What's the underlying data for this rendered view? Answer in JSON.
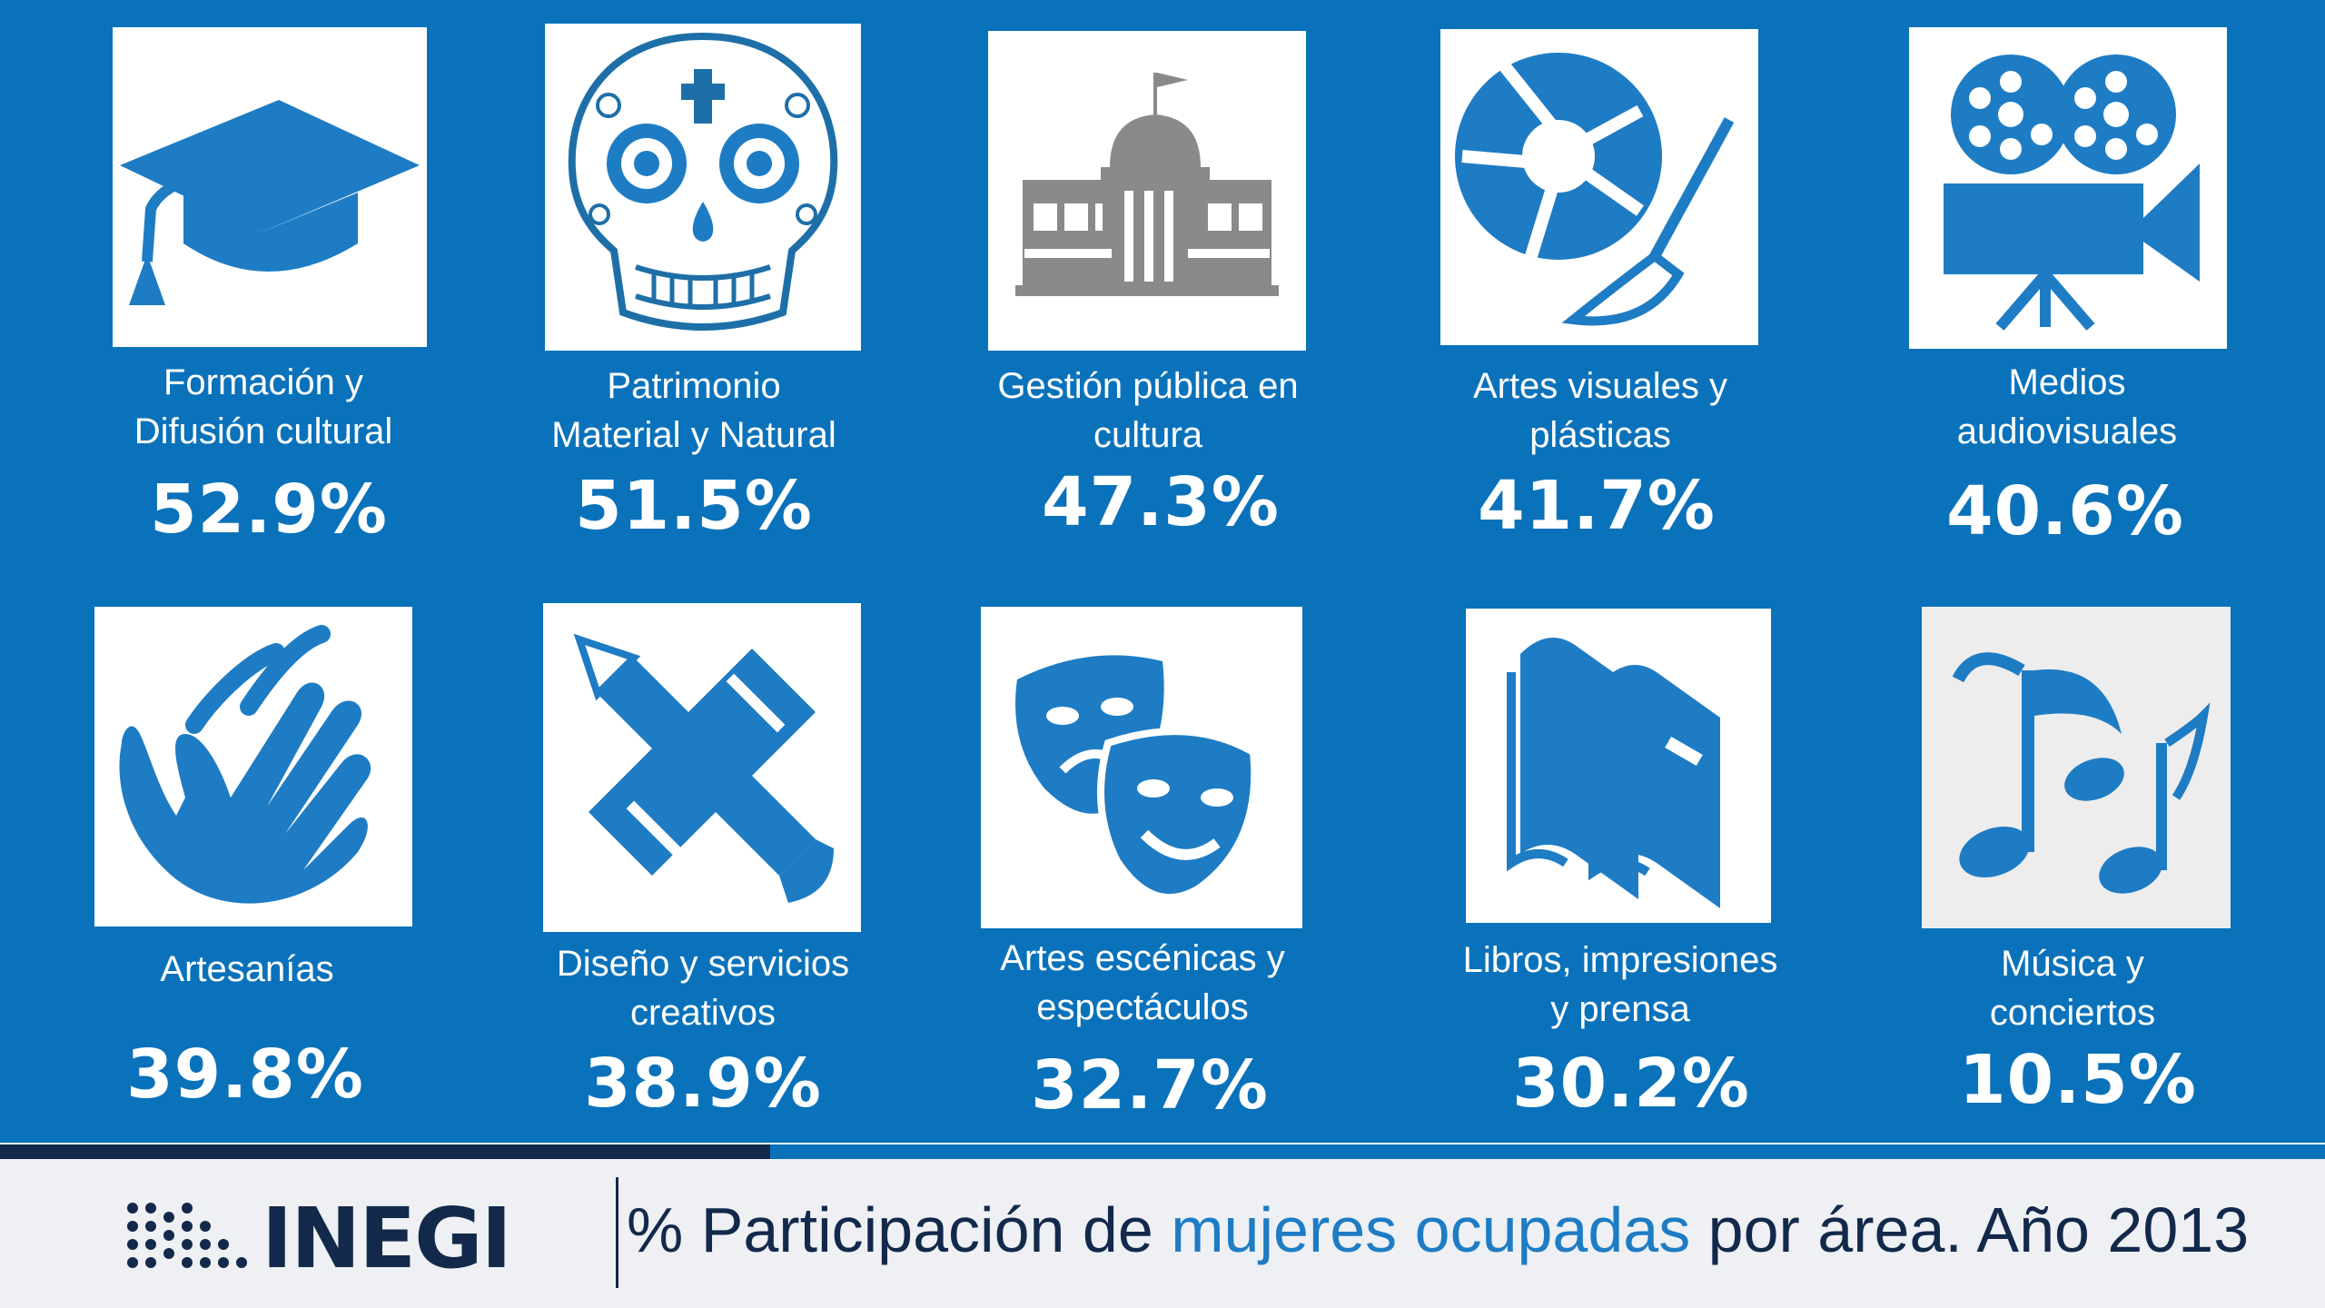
{
  "items": [
    {
      "label_l1": "Formación y",
      "label_l2": "Difusión cultural",
      "value": "52.9%",
      "icon": "graduation-cap-icon"
    },
    {
      "label_l1": "Patrimonio",
      "label_l2": "Material y Natural",
      "value": "51.5%",
      "icon": "sugar-skull-icon"
    },
    {
      "label_l1": "Gestión pública en",
      "label_l2": "cultura",
      "value": "47.3%",
      "icon": "government-building-icon"
    },
    {
      "label_l1": "Artes visuales y",
      "label_l2": "plásticas",
      "value": "41.7%",
      "icon": "aperture-brush-icon"
    },
    {
      "label_l1": "Medios",
      "label_l2": "audiovisuales",
      "value": "40.6%",
      "icon": "film-camera-icon"
    },
    {
      "label_l1": "Artesanías",
      "label_l2": "",
      "value": "39.8%",
      "icon": "hands-icon"
    },
    {
      "label_l1": "Diseño y servicios",
      "label_l2": "creativos",
      "value": "38.9%",
      "icon": "pencil-ruler-icon"
    },
    {
      "label_l1": "Artes escénicas y",
      "label_l2": "espectáculos",
      "value": "32.7%",
      "icon": "theater-masks-icon"
    },
    {
      "label_l1": "Libros, impresiones",
      "label_l2": "y prensa",
      "value": "30.2%",
      "icon": "books-icon"
    },
    {
      "label_l1": "Música y",
      "label_l2": "conciertos",
      "value": "10.5%",
      "icon": "music-notes-icon"
    }
  ],
  "footer": {
    "logo_text": "INEGI",
    "caption_prefix": "% Participación de ",
    "caption_highlight": "mujeres ocupadas",
    "caption_suffix": " por área. Año 2013"
  },
  "colors": {
    "panel_blue": "#0a72bb",
    "icon_blue": "#1e7cc4",
    "navy": "#13294b",
    "building_gray": "#8a8a8a"
  }
}
